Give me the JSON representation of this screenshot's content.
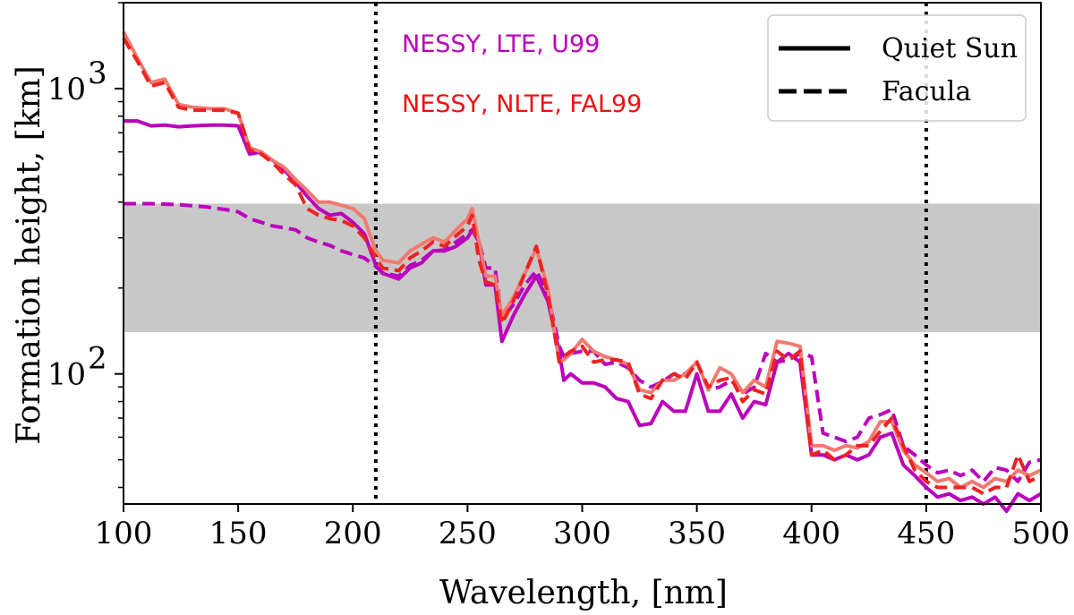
{
  "chart_data": {
    "type": "line",
    "xlabel": "Wavelength, [nm]",
    "ylabel": "Formation height, [km]",
    "xlim": [
      100,
      500
    ],
    "ylim": [
      35,
      2000
    ],
    "yscale": "log",
    "xticks": [
      {
        "value": 100,
        "label": "100"
      },
      {
        "value": 150,
        "label": "150"
      },
      {
        "value": 200,
        "label": "200"
      },
      {
        "value": 250,
        "label": "250"
      },
      {
        "value": 300,
        "label": "300"
      },
      {
        "value": 350,
        "label": "350"
      },
      {
        "value": 400,
        "label": "400"
      },
      {
        "value": 450,
        "label": "450"
      },
      {
        "value": 500,
        "label": "500"
      }
    ],
    "yticks": [
      {
        "value": 100,
        "base": "10",
        "exp": "2"
      },
      {
        "value": 1000,
        "base": "10",
        "exp": "3"
      }
    ],
    "shaded_band": {
      "y_min": 140,
      "y_max": 395,
      "color": "#c8c8c8"
    },
    "vlines": [
      210,
      450
    ],
    "annotations": [
      {
        "text": "NESSY, LTE, U99",
        "color": "#bb00bb"
      },
      {
        "text": "NESSY, NLTE, FAL99",
        "color": "#ee1111"
      }
    ],
    "legend": {
      "position": "top-right",
      "entries": [
        {
          "label": "Quiet Sun",
          "style": "solid"
        },
        {
          "label": "Facula",
          "style": "dashed"
        }
      ]
    },
    "series": [
      {
        "name": "NESSY LTE U99 — Quiet Sun",
        "color": "#bb00bb",
        "style": "solid",
        "x": [
          100,
          106,
          112,
          118,
          124,
          130,
          138,
          144,
          150,
          155,
          160,
          165,
          170,
          175,
          180,
          185,
          190,
          195,
          200,
          205,
          210,
          213,
          220,
          225,
          230,
          235,
          240,
          245,
          250,
          252,
          255,
          258,
          262,
          265,
          270,
          275,
          280,
          285,
          290,
          292,
          295,
          300,
          305,
          310,
          315,
          320,
          325,
          330,
          335,
          340,
          345,
          350,
          355,
          360,
          365,
          370,
          375,
          380,
          385,
          390,
          395,
          400,
          405,
          410,
          415,
          420,
          425,
          430,
          435,
          440,
          445,
          450,
          455,
          460,
          465,
          470,
          475,
          480,
          485,
          490,
          495,
          500
        ],
        "y": [
          770,
          770,
          740,
          745,
          735,
          740,
          745,
          745,
          740,
          590,
          600,
          560,
          520,
          470,
          420,
          380,
          360,
          365,
          340,
          310,
          240,
          225,
          215,
          235,
          245,
          270,
          270,
          280,
          300,
          320,
          290,
          205,
          205,
          130,
          160,
          190,
          220,
          180,
          120,
          95,
          100,
          93,
          93,
          90,
          82,
          80,
          66,
          67,
          80,
          74,
          74,
          100,
          74,
          74,
          85,
          70,
          80,
          78,
          110,
          118,
          110,
          52,
          52,
          50,
          52,
          50,
          52,
          60,
          62,
          48,
          44,
          40,
          37,
          38,
          36,
          37,
          35,
          37,
          33,
          38,
          36,
          38
        ]
      },
      {
        "name": "NESSY LTE U99 — Facula",
        "color": "#bb00bb",
        "style": "dashed",
        "x": [
          100,
          112,
          124,
          136,
          146,
          150,
          155,
          160,
          165,
          170,
          175,
          180,
          185,
          190,
          195,
          200,
          205,
          210,
          213,
          220,
          225,
          230,
          235,
          240,
          245,
          250,
          252,
          255,
          258,
          262,
          265,
          270,
          275,
          280,
          285,
          290,
          292,
          295,
          300,
          305,
          310,
          315,
          320,
          325,
          330,
          335,
          340,
          345,
          350,
          355,
          360,
          365,
          370,
          375,
          380,
          385,
          390,
          395,
          400,
          405,
          410,
          415,
          420,
          425,
          430,
          435,
          440,
          445,
          450,
          455,
          460,
          465,
          470,
          475,
          480,
          485,
          490,
          495,
          500
        ],
        "y": [
          395,
          395,
          392,
          385,
          375,
          370,
          350,
          340,
          330,
          325,
          320,
          300,
          290,
          282,
          270,
          262,
          255,
          238,
          226,
          220,
          240,
          250,
          270,
          272,
          290,
          310,
          320,
          290,
          235,
          235,
          155,
          175,
          205,
          230,
          190,
          125,
          115,
          118,
          120,
          120,
          108,
          110,
          105,
          95,
          90,
          94,
          100,
          100,
          110,
          88,
          90,
          95,
          85,
          90,
          118,
          110,
          112,
          118,
          115,
          62,
          60,
          58,
          60,
          70,
          72,
          75,
          56,
          52,
          48,
          45,
          46,
          44,
          46,
          42,
          47,
          46,
          42,
          49,
          50
        ]
      },
      {
        "name": "NESSY NLTE FAL99 — Quiet Sun",
        "color": "#f07a70",
        "style": "solid",
        "x": [
          100,
          106,
          112,
          118,
          124,
          130,
          138,
          144,
          150,
          155,
          160,
          165,
          170,
          175,
          180,
          185,
          190,
          195,
          200,
          205,
          210,
          213,
          220,
          225,
          230,
          235,
          240,
          245,
          250,
          252,
          255,
          258,
          262,
          265,
          270,
          275,
          280,
          285,
          290,
          292,
          295,
          300,
          305,
          310,
          315,
          320,
          325,
          330,
          335,
          340,
          345,
          350,
          355,
          360,
          365,
          370,
          375,
          380,
          385,
          390,
          395,
          400,
          405,
          410,
          415,
          420,
          425,
          430,
          435,
          440,
          445,
          450,
          455,
          460,
          465,
          470,
          475,
          480,
          485,
          490,
          495,
          500
        ],
        "y": [
          1580,
          1280,
          1050,
          1080,
          880,
          860,
          850,
          850,
          820,
          620,
          600,
          560,
          530,
          480,
          440,
          400,
          400,
          390,
          380,
          350,
          270,
          250,
          245,
          270,
          285,
          300,
          290,
          320,
          350,
          380,
          290,
          220,
          220,
          160,
          185,
          225,
          275,
          200,
          110,
          112,
          118,
          132,
          120,
          115,
          112,
          108,
          88,
          86,
          95,
          95,
          100,
          110,
          88,
          105,
          100,
          86,
          95,
          90,
          130,
          128,
          125,
          56,
          56,
          54,
          56,
          55,
          58,
          68,
          68,
          54,
          48,
          45,
          42,
          43,
          40,
          42,
          40,
          43,
          42,
          46,
          44,
          46
        ]
      },
      {
        "name": "NESSY NLTE FAL99 — Facula",
        "color": "#ee2222",
        "style": "dashed",
        "x": [
          100,
          106,
          112,
          118,
          124,
          130,
          138,
          144,
          150,
          155,
          160,
          165,
          170,
          175,
          180,
          185,
          190,
          195,
          200,
          205,
          210,
          213,
          220,
          225,
          230,
          235,
          240,
          245,
          250,
          252,
          255,
          258,
          262,
          265,
          270,
          275,
          280,
          285,
          290,
          292,
          295,
          300,
          305,
          310,
          315,
          320,
          325,
          330,
          335,
          340,
          345,
          350,
          355,
          360,
          365,
          370,
          375,
          380,
          385,
          390,
          395,
          400,
          405,
          410,
          415,
          420,
          425,
          430,
          435,
          440,
          445,
          450,
          455,
          460,
          465,
          470,
          475,
          480,
          485,
          490,
          495,
          500
        ],
        "y": [
          1500,
          1250,
          1020,
          1050,
          860,
          840,
          840,
          840,
          820,
          610,
          590,
          550,
          500,
          460,
          380,
          360,
          350,
          345,
          330,
          300,
          255,
          235,
          230,
          255,
          270,
          290,
          280,
          305,
          330,
          360,
          250,
          210,
          205,
          150,
          180,
          225,
          280,
          190,
          110,
          115,
          120,
          125,
          110,
          112,
          112,
          110,
          85,
          82,
          95,
          100,
          96,
          110,
          90,
          95,
          97,
          80,
          88,
          85,
          120,
          112,
          120,
          52,
          54,
          50,
          52,
          56,
          56,
          63,
          70,
          56,
          46,
          42,
          40,
          40,
          40,
          40,
          38,
          40,
          40,
          52,
          42,
          44
        ]
      }
    ]
  }
}
